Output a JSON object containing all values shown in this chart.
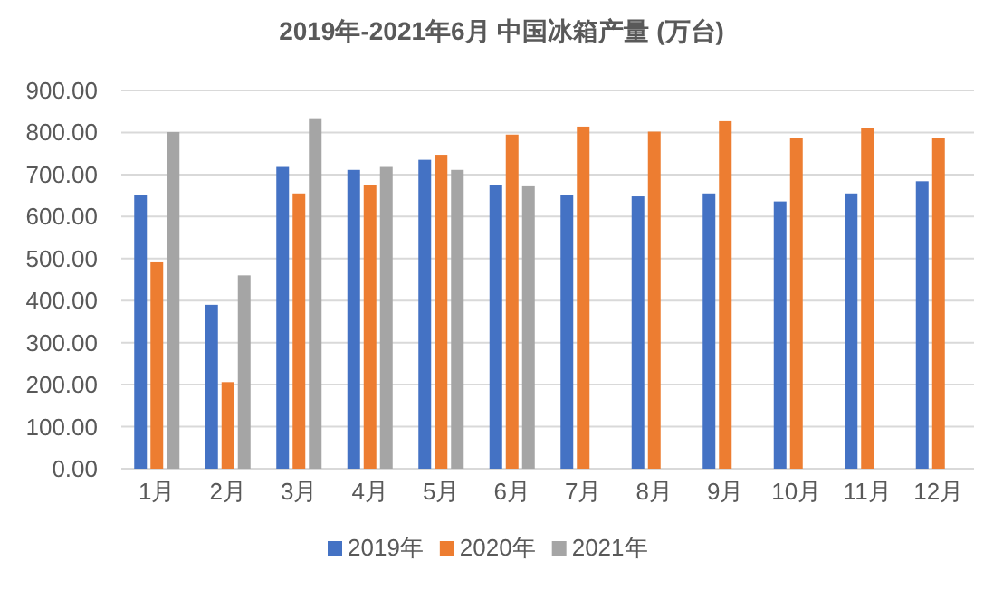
{
  "chart_data": {
    "type": "bar",
    "title": "2019年-2021年6月 中国冰箱产量 (万台)",
    "categories": [
      "1月",
      "2月",
      "3月",
      "4月",
      "5月",
      "6月",
      "7月",
      "8月",
      "9月",
      "10月",
      "11月",
      "12月"
    ],
    "series": [
      {
        "name": "2019年",
        "color": "#4472c4",
        "values": [
          651,
          390,
          718,
          711,
          735,
          675,
          651,
          648,
          655,
          636,
          655,
          684
        ]
      },
      {
        "name": "2020年",
        "color": "#ed7d31",
        "values": [
          491,
          206,
          655,
          675,
          747,
          795,
          814,
          802,
          827,
          787,
          810,
          787
        ]
      },
      {
        "name": "2021年",
        "color": "#a5a5a5",
        "values": [
          801,
          460,
          834,
          718,
          711,
          672,
          null,
          null,
          null,
          null,
          null,
          null
        ]
      }
    ],
    "ylim": [
      0,
      900
    ],
    "yticks": [
      {
        "value": 0,
        "label": "0.00"
      },
      {
        "value": 100,
        "label": "100.00"
      },
      {
        "value": 200,
        "label": "200.00"
      },
      {
        "value": 300,
        "label": "300.00"
      },
      {
        "value": 400,
        "label": "400.00"
      },
      {
        "value": 500,
        "label": "500.00"
      },
      {
        "value": 600,
        "label": "600.00"
      },
      {
        "value": 700,
        "label": "700.00"
      },
      {
        "value": 800,
        "label": "800.00"
      },
      {
        "value": 900,
        "label": "900.00"
      }
    ],
    "grid": "y",
    "legend": "bottom"
  }
}
